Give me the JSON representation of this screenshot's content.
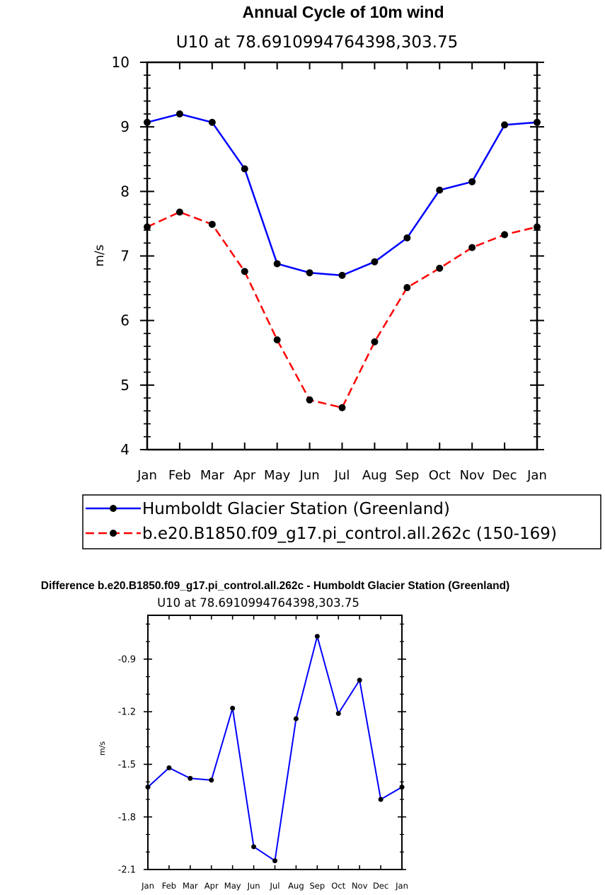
{
  "chart_data": [
    {
      "type": "line",
      "title": "Annual Cycle of 10m wind",
      "subtitle": "U10 at 78.6910994764398,303.75",
      "xlabel": "",
      "ylabel": "m/s",
      "categories": [
        "Jan",
        "Feb",
        "Mar",
        "Apr",
        "May",
        "Jun",
        "Jul",
        "Aug",
        "Sep",
        "Oct",
        "Nov",
        "Dec",
        "Jan"
      ],
      "ylim": [
        4,
        10
      ],
      "yticks": [
        4,
        5,
        6,
        7,
        8,
        9,
        10
      ],
      "ytick_labels": [
        "4",
        "5",
        "6",
        "7",
        "8",
        "9",
        "10"
      ],
      "grid": false,
      "legend_position": "below",
      "series": [
        {
          "name": "Humboldt Glacier Station (Greenland)",
          "color": "#0000ff",
          "dash": "solid",
          "values": [
            9.07,
            9.2,
            9.07,
            8.35,
            6.88,
            6.74,
            6.7,
            6.91,
            7.28,
            8.02,
            8.15,
            9.03,
            9.07
          ]
        },
        {
          "name": "b.e20.B1850.f09_g17.pi_control.all.262c (150-169)",
          "color": "#ff0000",
          "dash": "dashed",
          "values": [
            7.45,
            7.68,
            7.49,
            6.76,
            5.7,
            4.77,
            4.65,
            5.67,
            6.51,
            6.81,
            7.13,
            7.33,
            7.45
          ]
        }
      ]
    },
    {
      "type": "line",
      "title": "Difference b.e20.B1850.f09_g17.pi_control.all.262c - Humboldt Glacier Station (Greenland)",
      "subtitle": "U10 at 78.6910994764398,303.75",
      "xlabel": "",
      "ylabel": "m/s",
      "categories": [
        "Jan",
        "Feb",
        "Mar",
        "Apr",
        "May",
        "Jun",
        "Jul",
        "Aug",
        "Sep",
        "Oct",
        "Nov",
        "Dec",
        "Jan"
      ],
      "ylim": [
        -2.1,
        -0.65
      ],
      "yticks": [
        -2.1,
        -1.8,
        -1.5,
        -1.2,
        -0.9
      ],
      "ytick_labels": [
        "-2.1",
        "-1.8",
        "-1.5",
        "-1.2",
        "-0.9"
      ],
      "grid": false,
      "series": [
        {
          "name": "Difference",
          "color": "#0000ff",
          "dash": "solid",
          "values": [
            -1.63,
            -1.52,
            -1.58,
            -1.59,
            -1.18,
            -1.97,
            -2.05,
            -1.24,
            -0.77,
            -1.21,
            -1.02,
            -1.7,
            -1.63
          ]
        }
      ]
    }
  ]
}
